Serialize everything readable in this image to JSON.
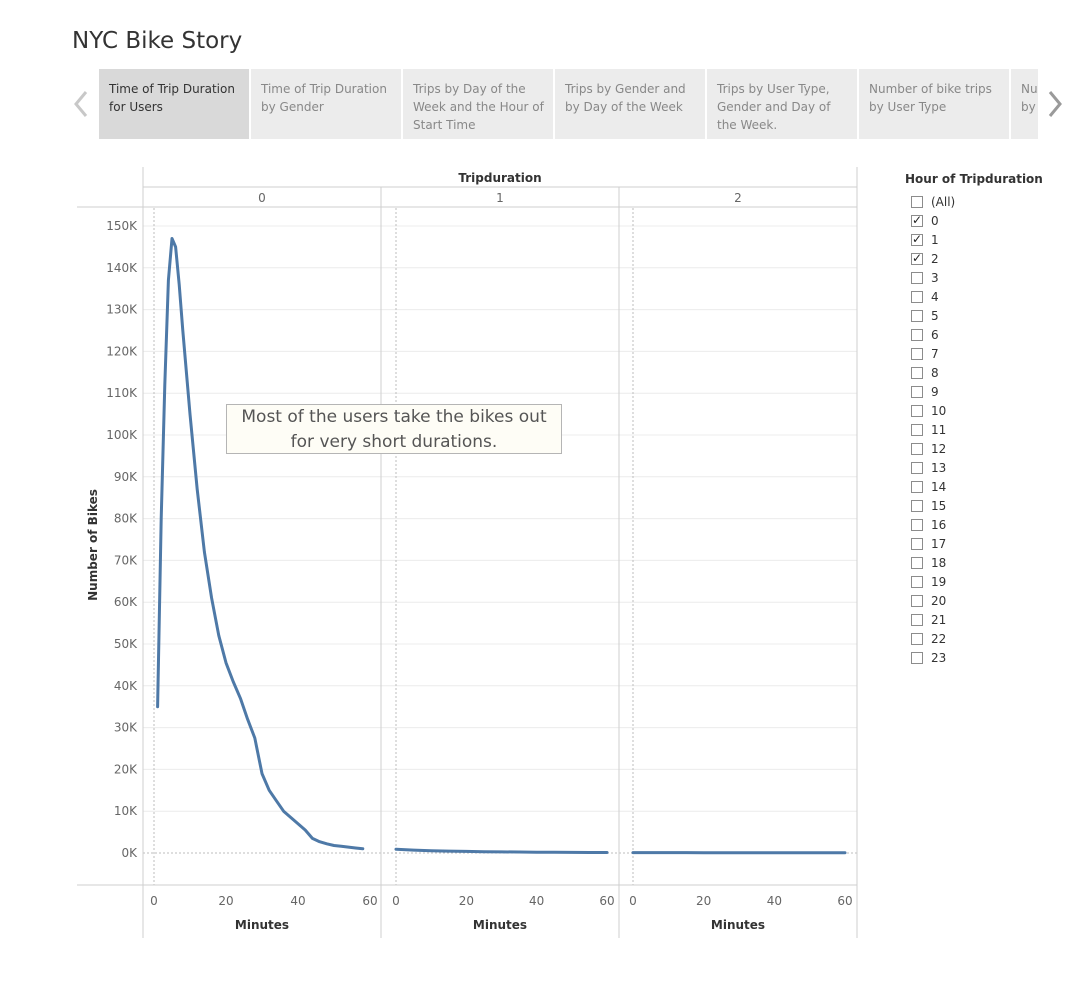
{
  "story": {
    "title": "NYC Bike Story",
    "tabs": [
      {
        "label": "Time of Trip Duration for Users",
        "active": true
      },
      {
        "label": "Time of Trip Duration by Gender",
        "active": false
      },
      {
        "label": "Trips by Day of the Week and the Hour of Start Time",
        "active": false
      },
      {
        "label": "Trips by Gender and by Day of the Week",
        "active": false
      },
      {
        "label": "Trips by User Type, Gender and Day of the Week.",
        "active": false
      },
      {
        "label": "Number of bike trips by User Type",
        "active": false
      },
      {
        "label": "Nu by",
        "active": false
      }
    ]
  },
  "annotation": {
    "line1": "Most of the users take the bikes out",
    "line2": "for very short durations."
  },
  "legend": {
    "title": "Hour of Tripduration",
    "items": [
      {
        "label": "(All)",
        "checked": false
      },
      {
        "label": "0",
        "checked": true
      },
      {
        "label": "1",
        "checked": true
      },
      {
        "label": "2",
        "checked": true
      },
      {
        "label": "3",
        "checked": false
      },
      {
        "label": "4",
        "checked": false
      },
      {
        "label": "5",
        "checked": false
      },
      {
        "label": "6",
        "checked": false
      },
      {
        "label": "7",
        "checked": false
      },
      {
        "label": "8",
        "checked": false
      },
      {
        "label": "9",
        "checked": false
      },
      {
        "label": "10",
        "checked": false
      },
      {
        "label": "11",
        "checked": false
      },
      {
        "label": "12",
        "checked": false
      },
      {
        "label": "13",
        "checked": false
      },
      {
        "label": "14",
        "checked": false
      },
      {
        "label": "15",
        "checked": false
      },
      {
        "label": "16",
        "checked": false
      },
      {
        "label": "17",
        "checked": false
      },
      {
        "label": "18",
        "checked": false
      },
      {
        "label": "19",
        "checked": false
      },
      {
        "label": "20",
        "checked": false
      },
      {
        "label": "21",
        "checked": false
      },
      {
        "label": "22",
        "checked": false
      },
      {
        "label": "23",
        "checked": false
      }
    ]
  },
  "colors": {
    "line": "#4e79a7",
    "grid": "#ececec",
    "axis": "#cfcfcf"
  },
  "chart_data": {
    "type": "line",
    "title": "",
    "column_header": "Tripduration",
    "xlabel": "Minutes",
    "ylabel": "Number of Bikes",
    "xlim": [
      0,
      60
    ],
    "ylim": [
      -7500,
      150000
    ],
    "x_ticks": [
      0,
      20,
      40,
      60
    ],
    "x_tick_labels": [
      "0",
      "20",
      "40",
      "60"
    ],
    "y_ticks": [
      0,
      10000,
      20000,
      30000,
      40000,
      50000,
      60000,
      70000,
      80000,
      90000,
      100000,
      110000,
      120000,
      130000,
      140000,
      150000
    ],
    "y_tick_labels": [
      "0K",
      "10K",
      "20K",
      "30K",
      "40K",
      "50K",
      "60K",
      "70K",
      "80K",
      "90K",
      "100K",
      "110K",
      "120K",
      "130K",
      "140K",
      "150K"
    ],
    "grid": true,
    "legend": "right",
    "panels": [
      {
        "name": "0",
        "x": [
          1,
          2,
          3,
          4,
          5,
          6,
          7,
          8,
          10,
          12,
          14,
          16,
          18,
          20,
          22,
          24,
          26,
          28,
          30,
          32,
          34,
          36,
          38,
          40,
          42,
          44,
          46,
          48,
          50,
          52,
          54,
          56,
          58
        ],
        "y": [
          35000,
          80000,
          112000,
          137000,
          147000,
          145000,
          136000,
          125000,
          105000,
          87000,
          72000,
          61000,
          52000,
          45500,
          41000,
          37000,
          32000,
          27500,
          19000,
          15000,
          12500,
          10000,
          8500,
          7000,
          5500,
          3500,
          2700,
          2200,
          1800,
          1600,
          1400,
          1200,
          1000
        ]
      },
      {
        "name": "1",
        "x": [
          0,
          5,
          10,
          15,
          20,
          25,
          30,
          35,
          40,
          45,
          50,
          55,
          60
        ],
        "y": [
          900,
          700,
          550,
          450,
          380,
          320,
          270,
          230,
          200,
          170,
          150,
          130,
          120
        ]
      },
      {
        "name": "2",
        "x": [
          0,
          5,
          10,
          15,
          20,
          25,
          30,
          35,
          40,
          45,
          50,
          55,
          60
        ],
        "y": [
          100,
          95,
          90,
          85,
          80,
          75,
          70,
          65,
          60,
          55,
          50,
          45,
          40
        ]
      }
    ]
  }
}
